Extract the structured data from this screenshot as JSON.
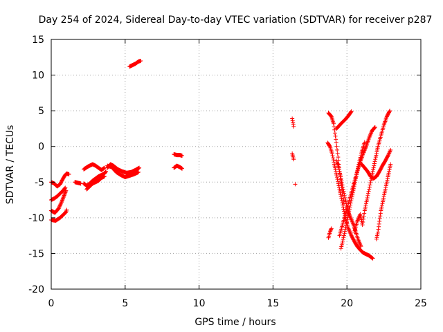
{
  "chart_data": {
    "type": "scatter",
    "title": "Day 254 of 2024, Sidereal Day-to-day VTEC variation (SDTVAR) for receiver p287",
    "xlabel": "GPS time / hours",
    "ylabel": "SDTVAR / TECUs",
    "xlim": [
      0,
      25
    ],
    "ylim": [
      -20,
      15
    ],
    "xticks": [
      0,
      5,
      10,
      15,
      20,
      25
    ],
    "yticks": [
      -20,
      -15,
      -10,
      -5,
      0,
      5,
      10,
      15
    ],
    "grid": true,
    "legend": "none",
    "marker": "plus",
    "color": "#ff0000",
    "tracks": [
      [
        [
          0.0,
          -5.0
        ],
        [
          0.2,
          -5.2
        ],
        [
          0.4,
          -5.6
        ],
        [
          0.6,
          -5.3
        ],
        [
          0.8,
          -4.5
        ],
        [
          0.95,
          -4.0
        ],
        [
          1.05,
          -3.8
        ],
        [
          1.2,
          -3.9
        ]
      ],
      [
        [
          0.0,
          -7.5
        ],
        [
          0.2,
          -7.3
        ],
        [
          0.4,
          -7.0
        ],
        [
          0.6,
          -6.6
        ],
        [
          0.8,
          -6.2
        ],
        [
          0.95,
          -5.8
        ]
      ],
      [
        [
          0.0,
          -9.0
        ],
        [
          0.25,
          -9.3
        ],
        [
          0.5,
          -8.7
        ],
        [
          0.7,
          -7.8
        ],
        [
          0.85,
          -7.0
        ],
        [
          1.0,
          -6.2
        ]
      ],
      [
        [
          0.0,
          -10.3
        ],
        [
          0.3,
          -10.4
        ],
        [
          0.6,
          -10.0
        ],
        [
          0.8,
          -9.6
        ],
        [
          1.0,
          -9.2
        ],
        [
          1.05,
          -8.9
        ]
      ],
      [
        [
          1.6,
          -5.0
        ],
        [
          1.8,
          -5.1
        ],
        [
          2.0,
          -5.2
        ]
      ],
      [
        [
          2.2,
          -5.2
        ],
        [
          2.4,
          -5.5
        ],
        [
          2.6,
          -5.2
        ],
        [
          2.8,
          -4.8
        ],
        [
          3.0,
          -4.5
        ],
        [
          3.2,
          -4.2
        ],
        [
          3.4,
          -4.0
        ],
        [
          3.6,
          -3.8
        ],
        [
          3.7,
          -3.5
        ]
      ],
      [
        [
          2.4,
          -6.0
        ],
        [
          2.6,
          -5.6
        ],
        [
          2.8,
          -5.2
        ],
        [
          3.0,
          -5.0
        ],
        [
          3.2,
          -4.8
        ],
        [
          3.4,
          -4.4
        ],
        [
          3.6,
          -4.2
        ]
      ],
      [
        [
          2.2,
          -3.2
        ],
        [
          2.5,
          -2.8
        ],
        [
          2.8,
          -2.5
        ],
        [
          3.0,
          -2.7
        ],
        [
          3.2,
          -3.0
        ],
        [
          3.4,
          -3.3
        ],
        [
          3.6,
          -3.0
        ]
      ],
      [
        [
          3.8,
          -3.0
        ],
        [
          4.0,
          -2.5
        ],
        [
          4.2,
          -2.7
        ],
        [
          4.5,
          -3.2
        ],
        [
          4.8,
          -3.5
        ],
        [
          5.1,
          -3.7
        ],
        [
          5.4,
          -3.6
        ],
        [
          5.7,
          -3.3
        ],
        [
          5.95,
          -3.0
        ]
      ],
      [
        [
          3.8,
          -2.7
        ],
        [
          4.1,
          -2.9
        ],
        [
          4.4,
          -3.6
        ],
        [
          4.7,
          -4.0
        ],
        [
          5.0,
          -4.3
        ],
        [
          5.3,
          -4.1
        ],
        [
          5.6,
          -3.9
        ],
        [
          5.9,
          -3.6
        ]
      ],
      [
        [
          5.3,
          11.2
        ],
        [
          5.5,
          11.4
        ],
        [
          5.7,
          11.6
        ],
        [
          5.9,
          11.9
        ],
        [
          6.05,
          12.0
        ]
      ],
      [
        [
          8.3,
          -1.1
        ],
        [
          8.5,
          -1.2
        ],
        [
          8.7,
          -1.2
        ],
        [
          8.85,
          -1.3
        ]
      ],
      [
        [
          8.3,
          -3.0
        ],
        [
          8.5,
          -2.7
        ],
        [
          8.7,
          -2.9
        ],
        [
          8.85,
          -3.1
        ]
      ],
      [
        [
          16.3,
          3.9
        ],
        [
          16.35,
          3.3
        ],
        [
          16.4,
          2.8
        ]
      ],
      [
        [
          16.3,
          -1.0
        ],
        [
          16.35,
          -1.4
        ],
        [
          16.4,
          -1.8
        ]
      ],
      [
        [
          16.5,
          -5.3
        ]
      ],
      [
        [
          18.75,
          -12.8
        ],
        [
          18.85,
          -12.0
        ],
        [
          18.95,
          -11.5
        ]
      ],
      [
        [
          18.7,
          0.5
        ],
        [
          18.85,
          0.0
        ],
        [
          19.0,
          -1.0
        ],
        [
          19.15,
          -2.5
        ],
        [
          19.3,
          -4.0
        ],
        [
          19.45,
          -5.5
        ],
        [
          19.6,
          -7.0
        ],
        [
          19.75,
          -8.5
        ],
        [
          19.9,
          -10.0
        ],
        [
          20.1,
          -11.5
        ],
        [
          20.3,
          -12.5
        ],
        [
          20.5,
          -13.3
        ],
        [
          20.7,
          -14.0
        ],
        [
          20.9,
          -14.5
        ],
        [
          21.1,
          -14.9
        ],
        [
          21.3,
          -15.1
        ],
        [
          21.5,
          -15.3
        ],
        [
          21.75,
          -15.7
        ]
      ],
      [
        [
          18.75,
          4.7
        ],
        [
          18.95,
          4.2
        ],
        [
          19.1,
          3.2
        ],
        [
          19.25,
          1.0
        ],
        [
          19.4,
          -1.5
        ],
        [
          19.5,
          -3.5
        ],
        [
          19.6,
          -5.0
        ],
        [
          19.7,
          -6.5
        ],
        [
          19.8,
          -8.0
        ]
      ],
      [
        [
          19.3,
          2.5
        ],
        [
          19.6,
          3.2
        ],
        [
          19.9,
          3.8
        ],
        [
          20.1,
          4.3
        ],
        [
          20.3,
          4.9
        ]
      ],
      [
        [
          19.3,
          -2.0
        ],
        [
          19.45,
          -3.0
        ],
        [
          19.6,
          -4.5
        ],
        [
          19.75,
          -6.0
        ],
        [
          19.9,
          -7.5
        ],
        [
          20.05,
          -9.0
        ],
        [
          20.25,
          -10.0
        ],
        [
          20.45,
          -11.0
        ],
        [
          20.6,
          -12.0
        ],
        [
          20.75,
          -13.0
        ],
        [
          20.95,
          -14.0
        ]
      ],
      [
        [
          19.5,
          -12.5
        ],
        [
          19.7,
          -11.0
        ],
        [
          19.9,
          -9.5
        ],
        [
          20.1,
          -8.0
        ],
        [
          20.3,
          -6.5
        ],
        [
          20.5,
          -5.0
        ],
        [
          20.7,
          -3.5
        ],
        [
          20.9,
          -2.2
        ],
        [
          21.1,
          -1.0
        ],
        [
          21.3,
          0.0
        ],
        [
          21.5,
          1.2
        ],
        [
          21.7,
          2.2
        ],
        [
          21.9,
          2.7
        ]
      ],
      [
        [
          19.6,
          -14.3
        ],
        [
          19.8,
          -12.5
        ],
        [
          20.0,
          -10.5
        ],
        [
          20.2,
          -8.5
        ],
        [
          20.4,
          -6.5
        ],
        [
          20.6,
          -4.5
        ],
        [
          20.8,
          -2.5
        ],
        [
          21.0,
          -0.8
        ],
        [
          21.2,
          0.6
        ]
      ],
      [
        [
          20.5,
          -12.0
        ],
        [
          20.7,
          -10.5
        ],
        [
          20.9,
          -9.5
        ],
        [
          21.05,
          -11.0
        ],
        [
          21.2,
          -9.0
        ],
        [
          21.35,
          -7.5
        ],
        [
          21.5,
          -6.0
        ],
        [
          21.65,
          -4.5
        ],
        [
          21.8,
          -3.0
        ],
        [
          21.95,
          -1.5
        ],
        [
          22.1,
          0.0
        ],
        [
          22.3,
          1.5
        ],
        [
          22.5,
          3.0
        ],
        [
          22.7,
          4.2
        ],
        [
          22.9,
          5.0
        ]
      ],
      [
        [
          21.0,
          -2.5
        ],
        [
          21.2,
          -3.0
        ],
        [
          21.4,
          -3.5
        ],
        [
          21.6,
          -4.2
        ],
        [
          21.8,
          -4.5
        ],
        [
          22.0,
          -4.2
        ],
        [
          22.2,
          -3.5
        ],
        [
          22.4,
          -2.7
        ],
        [
          22.6,
          -2.0
        ],
        [
          22.8,
          -1.2
        ],
        [
          22.95,
          -0.5
        ]
      ],
      [
        [
          22.0,
          -13.0
        ],
        [
          22.1,
          -12.0
        ],
        [
          22.2,
          -10.5
        ],
        [
          22.3,
          -9.0
        ],
        [
          22.4,
          -8.0
        ],
        [
          22.5,
          -7.0
        ],
        [
          22.6,
          -6.0
        ],
        [
          22.7,
          -5.0
        ],
        [
          22.85,
          -3.5
        ],
        [
          22.95,
          -2.5
        ]
      ]
    ]
  }
}
